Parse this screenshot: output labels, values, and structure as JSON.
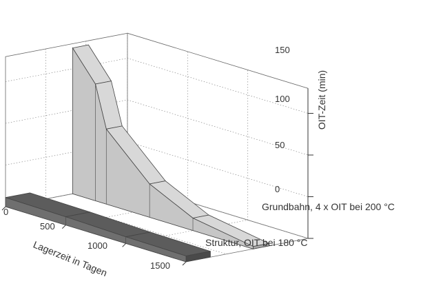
{
  "chart_data": {
    "type": "area",
    "projection": "3d-waterfall",
    "xlabel": "Lagerzeit in Tagen",
    "zlabel": "OIT-Zeit (min)",
    "x_ticks": [
      "0",
      "500",
      "1000",
      "1500"
    ],
    "z_ticks": [
      "0",
      "50",
      "100",
      "150"
    ],
    "xlim": [
      0,
      1500
    ],
    "zlim": [
      0,
      180
    ],
    "grid": true,
    "series": [
      {
        "name": "Struktur, OIT bei 180 °C",
        "color": "#6f6f6f",
        "x": [
          0,
          500,
          1000,
          1500
        ],
        "y": [
          11,
          10,
          8,
          7
        ]
      },
      {
        "name": "Grundbahn, 4 x OIT bei 200 °C",
        "color": "#c6c6c6",
        "x": [
          0,
          190,
          280,
          640,
          1000,
          1500
        ],
        "y": [
          175,
          140,
          90,
          40,
          15,
          3
        ]
      }
    ]
  }
}
